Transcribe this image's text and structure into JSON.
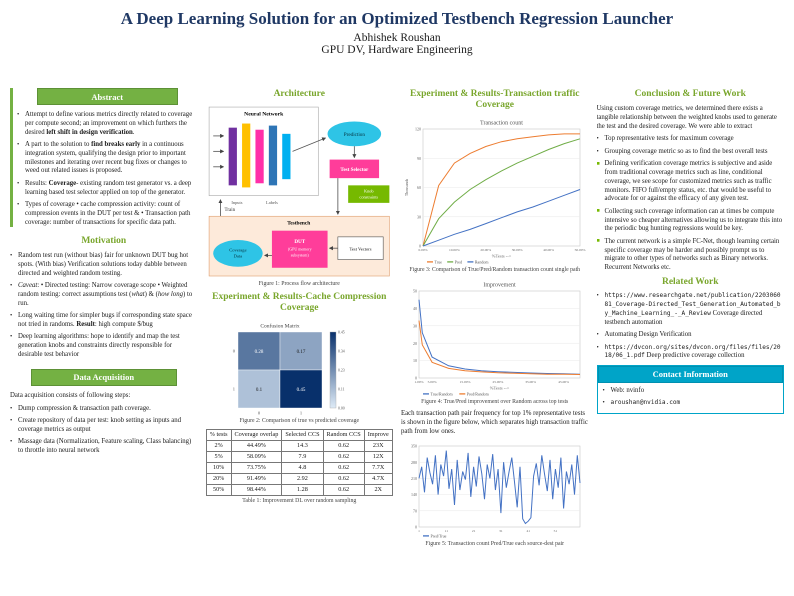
{
  "header": {
    "title": "A Deep Learning Solution for an Optimized Testbench Regression Launcher",
    "author": "Abhishek Roushan",
    "affiliation": "GPU DV, Hardware Engineering"
  },
  "ui": {
    "bullet_dot": "•",
    "bullet_square": "■"
  },
  "colors": {
    "title_navy": "#1f3864",
    "heading_green": "#79a62c",
    "box_green": "#74b143",
    "contact_cyan": "#00a4c8",
    "series_blue": "#4472c4",
    "series_orange": "#ed7d31",
    "series_green": "#70ad47",
    "diagram_pink": "#ff3d9a",
    "diagram_cyan": "#2ec4e6",
    "diagram_peach": "#fdeada",
    "knob_green": "#76b900"
  },
  "abstract": {
    "title": "Abstract",
    "bullets": [
      [
        {
          "t": "Attempt to define various metrics directly related to coverage per compute second; an improvement on which furthers the desired "
        },
        {
          "t": "left shift in design verification",
          "b": true
        },
        {
          "t": "."
        }
      ],
      [
        {
          "t": "A part to the solution to "
        },
        {
          "t": "find breaks early",
          "b": true
        },
        {
          "t": " in a continuous integration system, qualifying the design prior to important milestones and iterating over recent bug fixes or changes to weed out related issues is proposed."
        }
      ],
      [
        {
          "t": "Results: "
        },
        {
          "t": "Coverage",
          "b": true
        },
        {
          "t": "- existing random test generator vs. a deep learning based test selector applied on top of the generator."
        }
      ],
      [
        {
          "t": "Types of coverage • cache compression activity: count of compression events in the DUT per test & • Transaction path coverage: number of transactions for specific data path."
        }
      ]
    ]
  },
  "motivation": {
    "title": "Motivation",
    "bullets": [
      "Random test run (without bias) fair for unknown DUT bug hot spots. (With bias) Verification solutions today dabble between directed and weighted random testing.",
      [
        {
          "t": "Caveat",
          "i": true
        },
        {
          "t": ": • Directed testing: Narrow coverage scope • Weighted random testing: correct assumptions test ("
        },
        {
          "t": "what",
          "i": true
        },
        {
          "t": ") & ("
        },
        {
          "t": "how long",
          "i": true
        },
        {
          "t": ") to run."
        }
      ],
      [
        {
          "t": "Long waiting time for simpler bugs if corresponding state space not tried in randoms. "
        },
        {
          "t": "Result",
          "b": true
        },
        {
          "t": ": high compute $/bug"
        }
      ],
      "Deep learning algorithms: hope to identify and map the test generation knobs and constraints directly responsible for desirable test behavior"
    ]
  },
  "data_acquisition": {
    "title": "Data Acquisition",
    "intro": "Data acquisition consists of following steps:",
    "bullets": [
      "Dump compression & transaction path coverage.",
      "Create repository of data per test: knob setting as inputs and coverage metrics as output",
      "Massage data (Normalization, Feature scaling, Class balancing) to throttle into neural network"
    ]
  },
  "architecture": {
    "title": "Architecture",
    "caption": "Figure 1: Process flow architecture",
    "diagram": {
      "neural_network": "Neural Network",
      "prediction": "Prediction",
      "inputs": "Inputs",
      "labels": "Labels",
      "train": "Train",
      "test_selector": "Test Selector",
      "knob_line1": "Knob",
      "knob_line2": "constraints",
      "testbench": "Testbench",
      "dut_line1": "DUT",
      "dut_line2": "(GPU memory",
      "dut_line3": "subsystem)",
      "test_vectors": "Test Vectors",
      "coverage_line1": "Coverage",
      "coverage_line2": "Data"
    }
  },
  "cache_section": {
    "title": "Experiment & Results-Cache Compression Coverage",
    "fig2_caption": "Figure 2: Comparison of true vs predicted coverage",
    "table_caption": "Table 1: Improvement DL over random sampling",
    "table": {
      "headers": [
        "% tests",
        "Coverage overlap",
        "Selected CCS",
        "Random CCS",
        "Improve"
      ],
      "rows": [
        [
          "2%",
          "44.49%",
          "14.3",
          "0.62",
          "23X"
        ],
        [
          "5%",
          "58.09%",
          "7.9",
          "0.62",
          "12X"
        ],
        [
          "10%",
          "73.75%",
          "4.8",
          "0.62",
          "7.7X"
        ],
        [
          "20%",
          "91.49%",
          "2.92",
          "0.62",
          "4.7X"
        ],
        [
          "50%",
          "98.44%",
          "1.28",
          "0.62",
          "2X"
        ]
      ]
    }
  },
  "transaction_section": {
    "title": "Experiment & Results-Transaction traffic Coverage",
    "fig3_caption": "Figure 3: Comparison of True/Pred/Random transaction count single path",
    "fig4_caption": "Figure 4: True/Pred improvement over Random across top tests",
    "paragraph": "Each transaction path pair frequency for top 1% representative tests is shown in the figure below, which separates high transaction traffic path from low ones.",
    "fig5_caption": "Figure 5: Transaction count Pred/True each source-dest pair"
  },
  "conclusion": {
    "title": "Conclusion & Future Work",
    "intro": "Using custom coverage metrics, we determined there exists a tangible relationship between the weighted knobs used to generate the test and the desired coverage. We were able to extract",
    "bullets_a": [
      "Top representative tests for maximum coverage",
      "Grouping coverage metric so as to find the best overall tests"
    ],
    "bullets_b": [
      "Defining verification coverage metrics is subjective and aside from traditional coverage metrics such as line, conditional coverage, we see scope for customized metrics such as traffic monitors. FIFO full/empty status, etc. that would be useful to advocate for or against the efficacy of any given test.",
      "Collecting such coverage information can at times be compute intensive so cheaper alternatives allowing us to integrate this into the periodic bug hunting regressions would be key.",
      "The current network is a simple FC-Net, though learning certain specific coverage may be harder and possibly prompt us to migrate to other types of networks such as Binary networks. Recurrent Networks etc."
    ]
  },
  "related_work": {
    "title": "Related Work",
    "bullets": [
      [
        {
          "t": "https://www.researchgate.net/publication/220306081_Coverage-Directed_Test_Generation_Automated_by_Machine_Learning_-_A_Review",
          "m": true
        },
        {
          "t": " Coverage directed testbench automation"
        }
      ],
      "Automating Design Verification",
      [
        {
          "t": "https://dvcon.org/sites/dvcon.org/files/files/2018/06_1.pdf",
          "m": true
        },
        {
          "t": " Deep predictive coverage collection"
        }
      ]
    ]
  },
  "contact": {
    "title": "Contact Information",
    "bullets": [
      "Web: nvinfo",
      [
        {
          "t": "aroushan@nvidia.com",
          "m": true
        }
      ]
    ]
  },
  "chart_data": [
    {
      "type": "line",
      "title": "Transaction count",
      "x": [
        0,
        5,
        10,
        15,
        20,
        25,
        30,
        35,
        40,
        45,
        50
      ],
      "xunit": "%",
      "series": [
        {
          "name": "True",
          "color": "#ed7d31",
          "values": [
            0,
            62,
            85,
            95,
            102,
            107,
            110,
            112,
            114,
            115,
            115
          ]
        },
        {
          "name": "Pred",
          "color": "#70ad47",
          "values": [
            0,
            28,
            45,
            58,
            68,
            77,
            85,
            92,
            99,
            105,
            110
          ]
        },
        {
          "name": "Random",
          "color": "#4472c4",
          "values": [
            0,
            6,
            12,
            17,
            23,
            29,
            35,
            40,
            46,
            52,
            58
          ]
        }
      ],
      "ylim": [
        0,
        120
      ],
      "ysteps": 4,
      "ylabel": "Thousands",
      "xlabel": "%Tests -->",
      "legend_position": "bottom",
      "grid": true
    },
    {
      "type": "line",
      "title": "Improvement",
      "x": [
        1,
        2,
        5,
        10,
        15,
        20,
        25,
        30,
        35,
        40,
        45,
        50
      ],
      "xunit": "%",
      "series": [
        {
          "name": "True/Random",
          "color": "#4472c4",
          "values": [
            45,
            26,
            12,
            7,
            5.2,
            4.2,
            3.6,
            3.2,
            2.9,
            2.6,
            2.4,
            2.2
          ]
        },
        {
          "name": "Pred/Random",
          "color": "#ed7d31",
          "values": [
            33,
            19,
            9,
            5.5,
            4.2,
            3.5,
            3,
            2.7,
            2.4,
            2.2,
            2.1,
            2
          ]
        }
      ],
      "ylim": [
        0,
        50
      ],
      "ysteps": 5,
      "ylabel": "",
      "xlabel": "%Tests -->",
      "legend_position": "bottom",
      "grid": true
    },
    {
      "type": "line",
      "title": "",
      "x": [
        1,
        2,
        3,
        4,
        5,
        6,
        7,
        8,
        9,
        10,
        11,
        12,
        13,
        14,
        15,
        16,
        17,
        18,
        19,
        20,
        21,
        22,
        23,
        24,
        25,
        26,
        27,
        28,
        29,
        30,
        31,
        32,
        33,
        34,
        35,
        36,
        37,
        38,
        39,
        40,
        41,
        42,
        43,
        44,
        45,
        46,
        47,
        48,
        49,
        50,
        51,
        52,
        53,
        54,
        55,
        56,
        57,
        58,
        59,
        60
      ],
      "series": [
        {
          "name": "Pred/True",
          "color": "#4472c4",
          "values": [
            210,
            260,
            150,
            300,
            235,
            185,
            310,
            140,
            270,
            220,
            330,
            165,
            250,
            95,
            290,
            160,
            240,
            205,
            320,
            130,
            260,
            175,
            305,
            230,
            120,
            270,
            210,
            315,
            160,
            250,
            60,
            280,
            170,
            240,
            300,
            195,
            85,
            260,
            35,
            15,
            25,
            40,
            220,
            275,
            180,
            310,
            230,
            155,
            290,
            120,
            250,
            170,
            300,
            80,
            240,
            185,
            270,
            140,
            310,
            190
          ]
        }
      ],
      "ylim": [
        0,
        350
      ],
      "ysteps": 5,
      "ylabel": "",
      "xlabel": "",
      "legend_position": "bottom",
      "grid": true
    },
    {
      "type": "heatmap",
      "title": "Confusion Matrix",
      "row_labels": [
        "0",
        "1"
      ],
      "col_labels": [
        "0",
        "1"
      ],
      "values": [
        [
          0.28,
          0.17
        ],
        [
          0.1,
          0.45
        ]
      ],
      "vmin": 0,
      "vmax": 0.45
    }
  ]
}
